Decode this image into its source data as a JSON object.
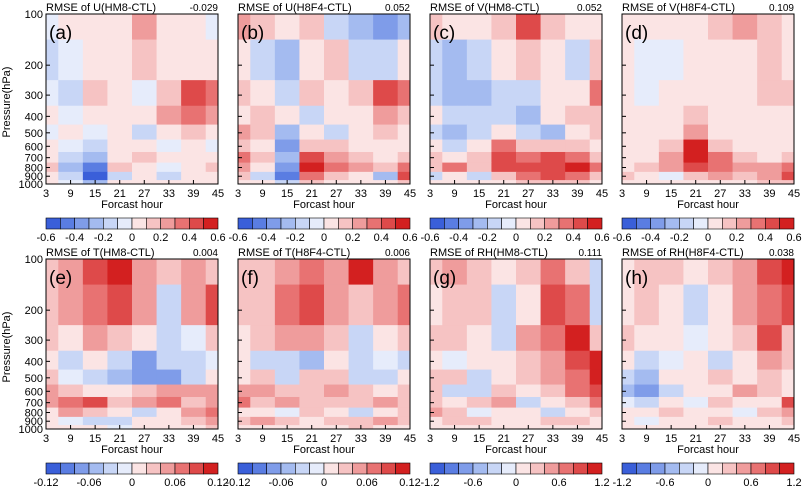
{
  "ylabel": "Pressure(hPa)",
  "xlabel": "Forcast hour",
  "x_ticks": [
    "3",
    "9",
    "15",
    "21",
    "27",
    "33",
    "39",
    "45"
  ],
  "y_ticks": [
    "100",
    "200",
    "300",
    "400",
    "500",
    "600",
    "700",
    "800",
    "900",
    "1000"
  ],
  "colors": {
    "neg": [
      "#3a5fd9",
      "#5a7de2",
      "#7f9ce9",
      "#a4bbf0",
      "#c8d6f6",
      "#e6ecfb"
    ],
    "pos": [
      "#fbe4e4",
      "#f6c3c3",
      "#ef9c9c",
      "#e87272",
      "#de4a4a",
      "#d32020"
    ]
  },
  "chart_data": [
    {
      "type": "heatmap",
      "label": "(a)",
      "title": "RMSE of U(HM8-CTL)",
      "value": "-0.029",
      "cbar_ticks": [
        "-0.6",
        "-0.4",
        "-0.2",
        "0",
        "0.2",
        "0.4",
        "0.6"
      ],
      "x": [
        3,
        9,
        15,
        21,
        27,
        33,
        39,
        45
      ],
      "y": [
        100,
        200,
        300,
        400,
        500,
        600,
        700,
        800,
        900,
        1000
      ],
      "ylim": [
        100,
        1000
      ],
      "xlim": [
        3,
        45
      ],
      "z": [
        [
          -0.1,
          0,
          0.1,
          0,
          0.3,
          0.1,
          0,
          -0.1
        ],
        [
          -0.2,
          -0.1,
          0.1,
          0,
          0.2,
          0,
          0.1,
          0.1
        ],
        [
          -0.1,
          -0.2,
          0.2,
          0,
          -0.1,
          0.2,
          0.5,
          0.4
        ],
        [
          0,
          -0.1,
          0,
          0.1,
          0,
          0.3,
          0.4,
          0.3
        ],
        [
          -0.1,
          0,
          -0.1,
          0.1,
          -0.2,
          0.1,
          0.2,
          0.1
        ],
        [
          0,
          -0.1,
          -0.2,
          0,
          0.1,
          -0.1,
          0,
          -0.1
        ],
        [
          0.1,
          -0.2,
          -0.3,
          0.1,
          0.2,
          0,
          0.1,
          0
        ],
        [
          0.2,
          -0.3,
          -0.5,
          0.2,
          0.1,
          -0.1,
          0.1,
          0.2
        ],
        [
          0.1,
          -0.2,
          -0.7,
          -0.2,
          0,
          -0.2,
          0,
          0.1
        ],
        [
          0,
          -0.1,
          -0.3,
          0,
          0.1,
          0,
          0,
          0
        ]
      ]
    },
    {
      "type": "heatmap",
      "label": "(b)",
      "title": "RMSE of U(H8F4-CTL)",
      "value": "0.052",
      "cbar_ticks": [
        "-0.6",
        "-0.4",
        "-0.2",
        "0",
        "0.2",
        "0.4",
        "0.6"
      ],
      "x": [
        3,
        9,
        15,
        21,
        27,
        33,
        39,
        45
      ],
      "y": [
        100,
        200,
        300,
        400,
        500,
        600,
        700,
        800,
        900,
        1000
      ],
      "ylim": [
        100,
        1000
      ],
      "xlim": [
        3,
        45
      ],
      "z": [
        [
          0.2,
          0.1,
          0,
          0.1,
          -0.1,
          -0.2,
          -0.3,
          -0.2
        ],
        [
          0,
          -0.1,
          -0.2,
          0,
          0.1,
          -0.1,
          -0.1,
          0
        ],
        [
          0.1,
          0,
          -0.1,
          0.1,
          0,
          0.1,
          0.4,
          0.3
        ],
        [
          0,
          0.1,
          0,
          -0.1,
          0,
          0,
          0.2,
          0.1
        ],
        [
          0.2,
          0.1,
          -0.2,
          0,
          -0.1,
          0,
          0.1,
          0
        ],
        [
          0.1,
          0,
          -0.3,
          0.1,
          0.1,
          0,
          0,
          0
        ],
        [
          0.3,
          0.1,
          -0.2,
          0.4,
          0.2,
          0.1,
          0,
          0.1
        ],
        [
          0.2,
          0,
          -0.3,
          0.5,
          0.3,
          0.2,
          0.1,
          0.3
        ],
        [
          0.1,
          -0.1,
          -0.4,
          0.3,
          0.1,
          0,
          -0.2,
          0.4
        ],
        [
          0,
          0,
          -0.1,
          0.1,
          0,
          0,
          0,
          0.1
        ]
      ]
    },
    {
      "type": "heatmap",
      "label": "(c)",
      "title": "RMSE of V(HM8-CTL)",
      "value": "0.052",
      "cbar_ticks": [
        "-0.6",
        "-0.4",
        "-0.2",
        "0",
        "0.2",
        "0.4",
        "0.6"
      ],
      "x": [
        3,
        9,
        15,
        21,
        27,
        33,
        39,
        45
      ],
      "y": [
        100,
        200,
        300,
        400,
        500,
        600,
        700,
        800,
        900,
        1000
      ],
      "ylim": [
        100,
        1000
      ],
      "xlim": [
        3,
        45
      ],
      "z": [
        [
          0.1,
          0,
          0,
          0.1,
          0.3,
          0.1,
          0,
          0
        ],
        [
          -0.1,
          -0.2,
          -0.1,
          0,
          0.1,
          0,
          -0.1,
          0.1
        ],
        [
          -0.1,
          -0.2,
          -0.2,
          -0.1,
          -0.1,
          0,
          0,
          0.2
        ],
        [
          0,
          -0.1,
          -0.1,
          -0.1,
          -0.2,
          0,
          0.1,
          0.1
        ],
        [
          -0.1,
          -0.2,
          -0.1,
          0,
          -0.1,
          -0.2,
          0,
          0.1
        ],
        [
          0,
          -0.1,
          0,
          0.2,
          0.1,
          0.1,
          0.1,
          0
        ],
        [
          0.1,
          0,
          0.1,
          0.3,
          0.2,
          0.3,
          0.2,
          0.1
        ],
        [
          0.1,
          0.2,
          0.1,
          0.3,
          0.3,
          0.3,
          0.4,
          0.2
        ],
        [
          -0.1,
          0,
          -0.1,
          0.1,
          0.2,
          0.3,
          0.2,
          0.1
        ],
        [
          0,
          0,
          0,
          0,
          0.1,
          0.1,
          0.1,
          0
        ]
      ]
    },
    {
      "type": "heatmap",
      "label": "(d)",
      "title": "RMSE of V(H8F4-CTL)",
      "value": "0.109",
      "cbar_ticks": [
        "-0.6",
        "-0.4",
        "-0.2",
        "0",
        "0.2",
        "0.4",
        "0.6"
      ],
      "x": [
        3,
        9,
        15,
        21,
        27,
        33,
        39,
        45
      ],
      "y": [
        100,
        200,
        300,
        400,
        500,
        600,
        700,
        800,
        900,
        1000
      ],
      "ylim": [
        100,
        1000
      ],
      "xlim": [
        3,
        45
      ],
      "z": [
        [
          0.1,
          0,
          0.1,
          0.1,
          0.2,
          0.3,
          0.2,
          0.1
        ],
        [
          0,
          -0.1,
          -0.1,
          0,
          0.1,
          0.1,
          0.2,
          0.1
        ],
        [
          0,
          -0.1,
          0,
          0.1,
          0.1,
          0,
          0.2,
          0.2
        ],
        [
          0.1,
          0,
          0,
          0.2,
          0.1,
          0.1,
          0.1,
          0.1
        ],
        [
          0,
          0.1,
          0.1,
          0.3,
          0.1,
          0,
          0.1,
          0
        ],
        [
          0.1,
          0,
          0.2,
          0.6,
          0.2,
          0.1,
          0,
          0.1
        ],
        [
          0,
          0.1,
          0.3,
          0.7,
          0.4,
          0.2,
          0.1,
          0.2
        ],
        [
          0.1,
          0.2,
          0.3,
          0.5,
          0.4,
          0.3,
          0.3,
          0.4
        ],
        [
          0.2,
          0,
          -0.1,
          0.2,
          0.3,
          0.2,
          0.3,
          0.5
        ],
        [
          0,
          0,
          0,
          0.1,
          0.1,
          0.1,
          0.2,
          0.2
        ]
      ]
    },
    {
      "type": "heatmap",
      "label": "(e)",
      "title": "RMSE of T(HM8-CTL)",
      "value": "0.004",
      "cbar_ticks": [
        "-0.12",
        "-0.06",
        "0",
        "0.06",
        "0.12"
      ],
      "x": [
        3,
        9,
        15,
        21,
        27,
        33,
        39,
        45
      ],
      "y": [
        100,
        200,
        300,
        400,
        500,
        600,
        700,
        800,
        900,
        1000
      ],
      "ylim": [
        100,
        1000
      ],
      "xlim": [
        3,
        45
      ],
      "z": [
        [
          0.02,
          0.04,
          0.06,
          0.09,
          0.04,
          0.02,
          0.03,
          0.02
        ],
        [
          0.02,
          0.03,
          0.05,
          0.07,
          0.03,
          -0.02,
          0.04,
          0.06
        ],
        [
          0.02,
          0,
          0.03,
          0.02,
          0,
          -0.03,
          -0.01,
          0.02
        ],
        [
          0.01,
          -0.02,
          0,
          -0.03,
          -0.05,
          -0.02,
          -0.03,
          -0.01
        ],
        [
          0.02,
          -0.01,
          -0.02,
          -0.04,
          -0.06,
          -0.05,
          -0.02,
          0
        ],
        [
          0.04,
          0.02,
          0.01,
          0,
          0.02,
          0.03,
          0.04,
          0.03
        ],
        [
          0.03,
          0.05,
          0.06,
          0.02,
          0.03,
          0.05,
          0.02,
          0.03
        ],
        [
          0.01,
          0.03,
          0.02,
          0,
          -0.02,
          0,
          0.03,
          0.05
        ],
        [
          0,
          -0.01,
          -0.02,
          -0.03,
          0,
          0.01,
          0.02,
          0.04
        ],
        [
          0,
          0,
          0,
          -0.01,
          0,
          0,
          0.01,
          0.02
        ]
      ]
    },
    {
      "type": "heatmap",
      "label": "(f)",
      "title": "RMSE of T(H8F4-CTL)",
      "value": "0.006",
      "cbar_ticks": [
        "-0.12",
        "-0.06",
        "0",
        "0.06",
        "0.12"
      ],
      "x": [
        3,
        9,
        15,
        21,
        27,
        33,
        39,
        45
      ],
      "y": [
        100,
        200,
        300,
        400,
        500,
        600,
        700,
        800,
        900,
        1000
      ],
      "ylim": [
        100,
        1000
      ],
      "xlim": [
        3,
        45
      ],
      "z": [
        [
          0.03,
          0.02,
          0.04,
          0.07,
          0.05,
          0.11,
          0.04,
          0.02
        ],
        [
          0.02,
          0.03,
          0.06,
          0.08,
          0.05,
          0.03,
          0.05,
          0.06
        ],
        [
          0.01,
          0.02,
          0.04,
          0.05,
          0.02,
          -0.02,
          0,
          0.02
        ],
        [
          0,
          -0.02,
          -0.03,
          -0.04,
          0,
          -0.03,
          -0.01,
          -0.02
        ],
        [
          0.01,
          0.02,
          -0.02,
          0.02,
          0.03,
          -0.02,
          -0.02,
          0
        ],
        [
          0.04,
          0.05,
          0.03,
          0.02,
          0.04,
          0.02,
          0,
          0.02
        ],
        [
          0.06,
          0.03,
          0.04,
          0.02,
          0.02,
          0.03,
          0.04,
          0.02
        ],
        [
          0.01,
          0,
          -0.01,
          0.02,
          0.01,
          -0.02,
          0,
          0.02
        ],
        [
          0.02,
          0.04,
          0.03,
          0.01,
          0.02,
          0.03,
          0.04,
          0.02
        ],
        [
          0,
          0.01,
          0,
          0,
          0.01,
          0.02,
          0.01,
          0.01
        ]
      ]
    },
    {
      "type": "heatmap",
      "label": "(g)",
      "title": "RMSE of RH(HM8-CTL)",
      "value": "0.111",
      "cbar_ticks": [
        "-1.2",
        "-0.6",
        "0",
        "0.6",
        "1.2"
      ],
      "x": [
        3,
        9,
        15,
        21,
        27,
        33,
        39,
        45
      ],
      "y": [
        100,
        200,
        300,
        400,
        500,
        600,
        700,
        800,
        900,
        1000
      ],
      "ylim": [
        100,
        1000
      ],
      "xlim": [
        3,
        45
      ],
      "z": [
        [
          0.3,
          0.6,
          0.4,
          0.2,
          0.5,
          0.9,
          0.4,
          -0.3
        ],
        [
          0.2,
          0.4,
          0.3,
          -0.4,
          0,
          1.2,
          0.8,
          -0.5
        ],
        [
          0.4,
          0.5,
          0.2,
          -0.3,
          0.6,
          1,
          1.4,
          0.3
        ],
        [
          0.2,
          -0.2,
          0,
          0.2,
          0.4,
          0.6,
          1.3,
          1.6
        ],
        [
          0.5,
          0.3,
          -0.4,
          0.1,
          0.3,
          0.7,
          1,
          1.4
        ],
        [
          0.4,
          -0.5,
          -0.3,
          0.5,
          0.2,
          0.4,
          0.8,
          1.1
        ],
        [
          0.3,
          0.2,
          0.5,
          0.6,
          -0.4,
          0,
          0.5,
          0.8
        ],
        [
          0.6,
          0.3,
          -0.2,
          0.2,
          0.1,
          -0.3,
          0.2,
          0.5
        ],
        [
          0.2,
          0.4,
          0.3,
          0.1,
          0.2,
          0.3,
          0.4,
          0.2
        ],
        [
          0,
          0.1,
          0,
          0.1,
          0,
          0.1,
          0.2,
          0.1
        ]
      ]
    },
    {
      "type": "heatmap",
      "label": "(h)",
      "title": "RMSE of RH(H8F4-CTL)",
      "value": "0.038",
      "cbar_ticks": [
        "-1.2",
        "-0.6",
        "0",
        "0.6",
        "1.2"
      ],
      "x": [
        3,
        9,
        15,
        21,
        27,
        33,
        39,
        45
      ],
      "y": [
        100,
        200,
        300,
        400,
        500,
        600,
        700,
        800,
        900,
        1000
      ],
      "ylim": [
        100,
        1000
      ],
      "xlim": [
        3,
        45
      ],
      "z": [
        [
          0.2,
          0.4,
          0.3,
          0.1,
          0.3,
          0.5,
          1,
          1.3
        ],
        [
          0.1,
          0.3,
          0.2,
          -0.3,
          0.2,
          0.6,
          0.8,
          0.9
        ],
        [
          0.3,
          0.2,
          0,
          -0.2,
          0.2,
          0.4,
          0.9,
          0.4
        ],
        [
          0.1,
          -0.3,
          -0.2,
          0.1,
          -0.3,
          0.2,
          0.5,
          0.3
        ],
        [
          -0.3,
          -0.5,
          0.2,
          0,
          0.3,
          0.1,
          0.4,
          0.2
        ],
        [
          -0.5,
          -0.8,
          -0.4,
          0.2,
          0.1,
          0.5,
          0.3,
          0.1
        ],
        [
          -0.2,
          -0.3,
          0.2,
          -0.1,
          0.3,
          0,
          0.2,
          0.9
        ],
        [
          0,
          0.2,
          0.3,
          0.2,
          0.1,
          -0.2,
          0.3,
          0.6
        ],
        [
          0.1,
          -0.2,
          0,
          0.2,
          0.3,
          0.1,
          0.2,
          0.4
        ],
        [
          0,
          0,
          0.1,
          0,
          0.1,
          0,
          0.1,
          0.1
        ]
      ]
    }
  ]
}
